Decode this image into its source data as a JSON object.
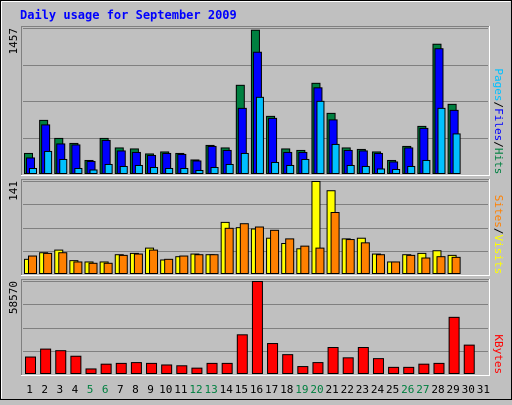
{
  "colors": {
    "background": "#c0c0c0",
    "plot_background": "#c0c0c0",
    "grid": "#808080",
    "title": "#0000ff",
    "hits": "#008040",
    "files": "#0000ff",
    "pages": "#00c0ff",
    "visits": "#ffff00",
    "sites": "#ff8000",
    "kbytes": "#ff0000",
    "weekend_day": "#008040",
    "weekday": "#000000"
  },
  "chart_data": [
    {
      "type": "bar",
      "title": "Daily usage for September 2009",
      "panel": "hits_files_pages",
      "ylabel_parts": [
        "Pages",
        "/",
        "Files",
        "/",
        "Hits"
      ],
      "ymax_label": "1457",
      "ylim": [
        0,
        1457
      ],
      "grid": true,
      "categories": [
        "1",
        "2",
        "3",
        "4",
        "5",
        "6",
        "7",
        "8",
        "9",
        "10",
        "11",
        "12",
        "13",
        "14",
        "15",
        "16",
        "17",
        "18",
        "19",
        "20",
        "21",
        "22",
        "23",
        "24",
        "25",
        "26",
        "27",
        "28",
        "29",
        "30",
        "31"
      ],
      "series": [
        {
          "name": "Hits",
          "color_key": "hits",
          "values": [
            210,
            540,
            360,
            310,
            140,
            360,
            265,
            255,
            205,
            225,
            210,
            145,
            290,
            265,
            890,
            1440,
            580,
            255,
            240,
            910,
            610,
            265,
            250,
            225,
            140,
            280,
            480,
            1300,
            700,
            0,
            0
          ]
        },
        {
          "name": "Files",
          "color_key": "files",
          "values": [
            165,
            495,
            305,
            295,
            130,
            340,
            235,
            220,
            190,
            210,
            200,
            135,
            280,
            240,
            660,
            1220,
            560,
            220,
            220,
            865,
            545,
            240,
            235,
            210,
            125,
            265,
            460,
            1255,
            640,
            0,
            0
          ]
        },
        {
          "name": "Pages",
          "color_key": "pages",
          "values": [
            60,
            230,
            150,
            60,
            45,
            100,
            80,
            90,
            70,
            60,
            60,
            40,
            70,
            100,
            210,
            770,
            120,
            90,
            150,
            730,
            300,
            90,
            80,
            55,
            50,
            80,
            140,
            660,
            405,
            0,
            0
          ]
        }
      ]
    },
    {
      "type": "bar",
      "panel": "visits_sites",
      "ylabel_parts": [
        "Sites",
        "/",
        "Visits"
      ],
      "ymax_label": "141",
      "ylim": [
        0,
        141
      ],
      "grid": true,
      "categories": [
        "1",
        "2",
        "3",
        "4",
        "5",
        "6",
        "7",
        "8",
        "9",
        "10",
        "11",
        "12",
        "13",
        "14",
        "15",
        "16",
        "17",
        "18",
        "19",
        "20",
        "21",
        "22",
        "23",
        "24",
        "25",
        "26",
        "27",
        "28",
        "29",
        "30",
        "31"
      ],
      "series": [
        {
          "name": "Visits",
          "color_key": "visits",
          "values": [
            23,
            33,
            37,
            21,
            19,
            19,
            30,
            32,
            40,
            22,
            27,
            31,
            30,
            79,
            71,
            69,
            55,
            47,
            39,
            141,
            127,
            54,
            55,
            31,
            19,
            30,
            32,
            36,
            29,
            0,
            0
          ]
        },
        {
          "name": "Sites",
          "color_key": "sites",
          "values": [
            28,
            32,
            33,
            19,
            17,
            17,
            29,
            31,
            37,
            23,
            28,
            30,
            30,
            70,
            77,
            72,
            67,
            54,
            43,
            40,
            94,
            53,
            48,
            30,
            19,
            29,
            25,
            27,
            26,
            0,
            0
          ]
        }
      ]
    },
    {
      "type": "bar",
      "panel": "kbytes",
      "ylabel_parts": [
        "KBytes"
      ],
      "ymax_label": "58570",
      "ylim": [
        0,
        58570
      ],
      "grid": true,
      "categories": [
        "1",
        "2",
        "3",
        "4",
        "5",
        "6",
        "7",
        "8",
        "9",
        "10",
        "11",
        "12",
        "13",
        "14",
        "15",
        "16",
        "17",
        "18",
        "19",
        "20",
        "21",
        "22",
        "23",
        "24",
        "25",
        "26",
        "27",
        "28",
        "29",
        "30",
        "31"
      ],
      "series": [
        {
          "name": "KBytes",
          "color_key": "kbytes",
          "values": [
            11000,
            16000,
            15000,
            11500,
            3500,
            6500,
            7000,
            7500,
            7000,
            6000,
            5500,
            4000,
            7000,
            7000,
            25000,
            58570,
            19500,
            12500,
            5000,
            7500,
            17000,
            10500,
            17000,
            10000,
            4500,
            4500,
            6500,
            7000,
            36000,
            18500,
            0
          ]
        }
      ]
    }
  ]
}
